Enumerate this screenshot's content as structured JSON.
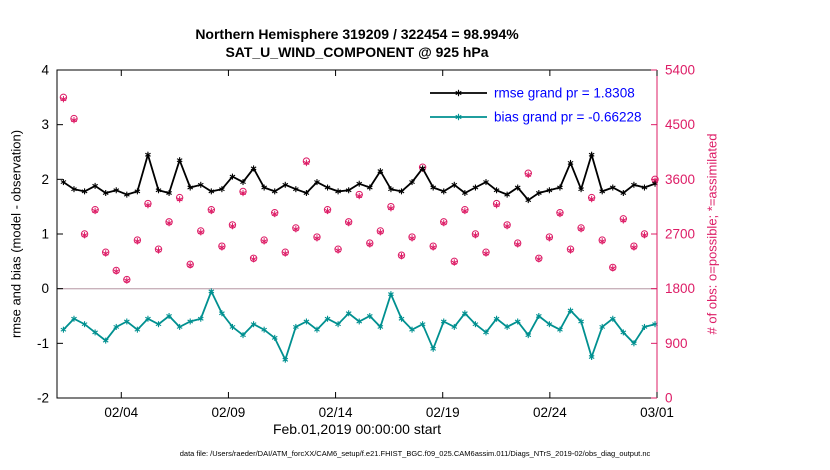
{
  "figure": {
    "title_line1": "Northern Hemisphere 319209 / 322454 = 98.994%",
    "title_line2": "SAT_U_WIND_COMPONENT @ 925 hPa",
    "xlabel": "Feb.01,2019 00:00:00 start",
    "ylabel_left": "rmse and bias (model - observation)",
    "ylabel_right": "# of obs: o=possible; *=assimilated",
    "caption": "data file: /Users/raeder/DAI/ATM_forcXX/CAM6_setup/f.e21.FHIST_BGC.f09_025.CAM6assim.011/Diags_NTrS_2019-02/obs_diag_output.nc"
  },
  "chart_data": {
    "type": "line",
    "title": "Northern Hemisphere 319209 / 322454 = 98.994% | SAT_U_WIND_COMPONENT @ 925 hPa",
    "xlabel": "Feb.01,2019 00:00:00 start",
    "ylabel_left": "rmse and bias (model - observation)",
    "ylabel_right": "# of obs: o=possible; *=assimilated",
    "x_unit": "days since 2019-02-01 00:00:00",
    "x_range": [
      0,
      28
    ],
    "ylim_left": [
      -2,
      4
    ],
    "ylim_right": [
      0,
      5400
    ],
    "x_start": 0.3,
    "x_step": 0.493,
    "n_points": 57,
    "xticks": {
      "positions": [
        3,
        8,
        13,
        18,
        23,
        28
      ],
      "labels": [
        "02/04",
        "02/09",
        "02/14",
        "02/19",
        "02/24",
        "03/01"
      ]
    },
    "yticks_left": [
      -2,
      -1,
      0,
      1,
      2,
      3,
      4
    ],
    "yticks_right": [
      0,
      900,
      1800,
      2700,
      3600,
      4500,
      5400
    ],
    "grid": false,
    "legend_position": "top-right-inside",
    "legend": [
      {
        "label": "rmse grand pr = 1.8308",
        "color": "#000000"
      },
      {
        "label": "bias grand pr = -0.66228",
        "color": "#009090"
      }
    ],
    "colors": {
      "rmse": "#000000",
      "bias": "#009090",
      "obs": "#dd1c66",
      "zero_line": "#c9b2bb",
      "legend_text": "#0000ff"
    },
    "series": [
      {
        "name": "rmse",
        "axis": "left",
        "marker": "asterisk",
        "grand_mean": 1.8308,
        "values": [
          1.95,
          1.82,
          1.78,
          1.88,
          1.75,
          1.8,
          1.72,
          1.78,
          2.45,
          1.8,
          1.75,
          2.35,
          1.85,
          1.9,
          1.78,
          1.82,
          2.05,
          1.95,
          2.2,
          1.85,
          1.78,
          1.9,
          1.82,
          1.75,
          1.95,
          1.85,
          1.78,
          1.8,
          1.92,
          1.85,
          2.15,
          1.82,
          1.78,
          1.95,
          2.2,
          1.85,
          1.78,
          1.9,
          1.75,
          1.85,
          1.95,
          1.8,
          1.72,
          1.85,
          1.62,
          1.75,
          1.8,
          1.85,
          2.3,
          1.82,
          2.45,
          1.78,
          1.85,
          1.75,
          1.9,
          1.85,
          1.92
        ]
      },
      {
        "name": "bias",
        "axis": "left",
        "marker": "asterisk",
        "grand_mean": -0.66228,
        "values": [
          -0.75,
          -0.55,
          -0.65,
          -0.8,
          -0.95,
          -0.7,
          -0.6,
          -0.75,
          -0.55,
          -0.65,
          -0.5,
          -0.7,
          -0.6,
          -0.55,
          -0.05,
          -0.45,
          -0.7,
          -0.85,
          -0.65,
          -0.75,
          -0.9,
          -1.3,
          -0.7,
          -0.6,
          -0.75,
          -0.55,
          -0.65,
          -0.45,
          -0.6,
          -0.5,
          -0.7,
          -0.1,
          -0.55,
          -0.75,
          -0.65,
          -1.1,
          -0.6,
          -0.7,
          -0.45,
          -0.65,
          -0.8,
          -0.55,
          -0.7,
          -0.6,
          -0.85,
          -0.5,
          -0.65,
          -0.75,
          -0.4,
          -0.6,
          -1.25,
          -0.7,
          -0.55,
          -0.8,
          -1.0,
          -0.7,
          -0.65
        ]
      },
      {
        "name": "N_possible",
        "axis": "right",
        "marker": "circle",
        "total": 322454,
        "values": [
          4950,
          4600,
          2700,
          3100,
          2400,
          2100,
          1950,
          2600,
          3200,
          2450,
          2900,
          3300,
          2200,
          2750,
          3100,
          2500,
          2850,
          3400,
          2300,
          2600,
          3050,
          2400,
          2800,
          3900,
          2650,
          3100,
          2450,
          2900,
          3350,
          2550,
          2750,
          3150,
          2350,
          2650,
          3800,
          2500,
          2900,
          2250,
          3100,
          2700,
          2400,
          3200,
          2850,
          2550,
          3700,
          2300,
          2650,
          3050,
          2450,
          2800,
          3300,
          2600,
          2150,
          2950,
          2500,
          2700,
          3600
        ]
      },
      {
        "name": "N_assimilated",
        "axis": "right",
        "marker": "asterisk",
        "total": 319209,
        "values": [
          4920,
          4575,
          2680,
          3080,
          2380,
          2085,
          1935,
          2580,
          3175,
          2430,
          2880,
          3270,
          2185,
          2730,
          3080,
          2480,
          2830,
          3375,
          2285,
          2580,
          3030,
          2380,
          2780,
          3870,
          2630,
          3080,
          2430,
          2880,
          3325,
          2530,
          2730,
          3125,
          2335,
          2630,
          3775,
          2480,
          2880,
          2230,
          3080,
          2680,
          2380,
          3175,
          2830,
          2530,
          3675,
          2285,
          2630,
          3030,
          2430,
          2780,
          3275,
          2580,
          2135,
          2925,
          2480,
          2680,
          3575
        ]
      }
    ]
  }
}
